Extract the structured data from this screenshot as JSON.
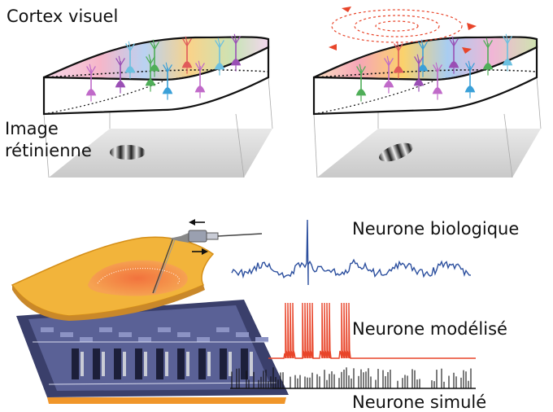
{
  "labels": {
    "cortex": "Cortex visuel",
    "image_line1": "Image",
    "image_line2": "rétinienne",
    "neuron_bio": "Neurone biologique",
    "neuron_model": "Neurone modélisé",
    "neuron_sim": "Neurone simulé"
  },
  "colors": {
    "bio_trace": "#2c4f9e",
    "model_trace": "#e8452a",
    "sim_trace": "#111111",
    "tissue": "#f2b43b",
    "chip": "#3a3f6b",
    "chip_base": "#f0962a"
  },
  "neuron_colors": [
    "#9a4fb5",
    "#3aa0d8",
    "#4fae58",
    "#e05a5a",
    "#c06ac9",
    "#6cc0e0"
  ]
}
